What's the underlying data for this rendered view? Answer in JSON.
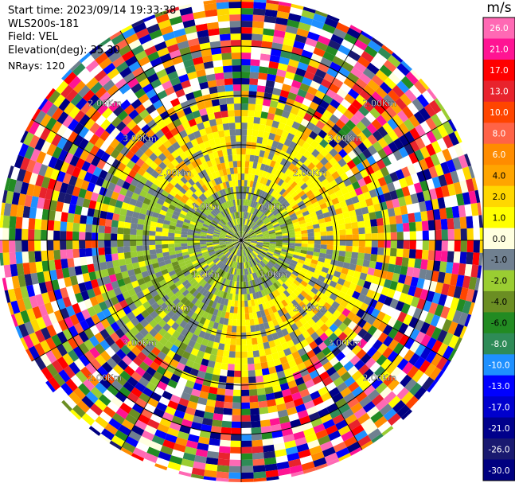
{
  "header": {
    "start_time": "Start time: 2023/09/14 19:33:38",
    "station": "WLS200s-181",
    "field": "Field: VEL",
    "elevation": "Elevation(deg): 35.30",
    "nrays": "NRays: 120"
  },
  "chart_data": {
    "type": "ppi-polar-heatmap",
    "field": "VEL",
    "elevation_deg": 35.3,
    "n_rays": 120,
    "range_rings": [
      {
        "label": "1.0Km",
        "visible_labels": 4
      },
      {
        "label": "2.00Km",
        "visible_labels": 4
      },
      {
        "label": "3.00Km",
        "visible_labels": 4
      },
      {
        "label": "2.00Km",
        "visible_labels": 4
      }
    ],
    "ring_label_text": [
      "1.0Km",
      "1.0Km",
      "1.0Km",
      "1.0Km",
      "2.00Km",
      "2.00Km",
      "2.00Km",
      "2.00Km",
      "3.00Km",
      "3.00Km",
      "3.00Km",
      "3.00Km",
      "2.00Km",
      "2.00Km",
      "2.00Km",
      "2.00Km"
    ],
    "spokes_deg": [
      0,
      30,
      60,
      90,
      120,
      150,
      180,
      210,
      240,
      270,
      300,
      330
    ],
    "colorbar": {
      "unit": "m/s",
      "ticks": [
        "26.0",
        "21.0",
        "17.0",
        "13.0",
        "10.0",
        "8.0",
        "6.0",
        "4.0",
        "2.0",
        "1.0",
        "0.0",
        "-1.0",
        "-2.0",
        "-4.0",
        "-6.0",
        "-8.0",
        "-10.0",
        "-13.0",
        "-17.0",
        "-21.0",
        "-26.0",
        "-30.0"
      ],
      "colors": [
        "#ff69b4",
        "#ff1493",
        "#ff0000",
        "#e8232d",
        "#ff4500",
        "#ff6347",
        "#ff8c00",
        "#ffa500",
        "#ffd700",
        "#ffff00",
        "#ffffe0",
        "#708090",
        "#9acd32",
        "#6b8e23",
        "#228b22",
        "#2e8b57",
        "#1e90ff",
        "#0000ff",
        "#0000cd",
        "#00008b",
        "#191970",
        "#000080"
      ]
    }
  }
}
